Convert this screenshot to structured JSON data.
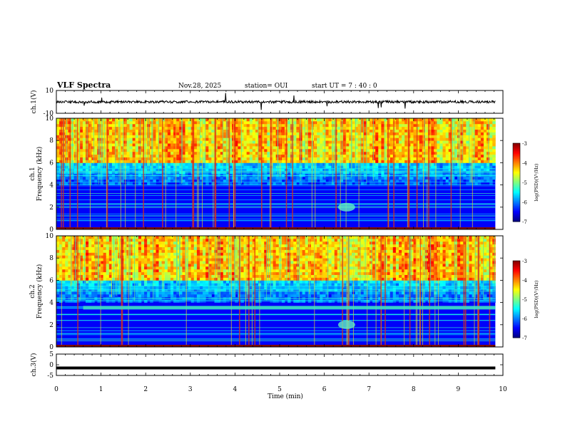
{
  "header": {
    "title": "VLF Spectra",
    "date": "Nov.28, 2025",
    "station": "station= OUI",
    "start": "start UT =   7 : 40 : 0"
  },
  "chart_data": [
    {
      "type": "line",
      "name": "ch1-waveform",
      "ylabel": "ch.1(V)",
      "ylim": [
        -10,
        10
      ],
      "yticks": [
        "10",
        "-10"
      ],
      "x_end_min": 9.83,
      "baseline": 0
    },
    {
      "type": "heatmap",
      "name": "ch1-spectrogram",
      "ylabel": "ch.1\nFrequency (kHz)",
      "ylim": [
        0,
        10
      ],
      "yticks": [
        "0",
        "2",
        "4",
        "6",
        "8",
        "10"
      ],
      "colorbar": {
        "label": "log(PSD)(V²/Hz)",
        "range": [
          -7,
          -3
        ],
        "ticks": [
          "-3",
          "-4",
          "-5",
          "-6",
          "-7"
        ]
      },
      "features": [
        {
          "label": "burst",
          "t_min": 6.5,
          "f_khz": 2.0
        }
      ]
    },
    {
      "type": "heatmap",
      "name": "ch2-spectrogram",
      "ylabel": "ch.2\nFrequency (kHz)",
      "ylim": [
        0,
        10
      ],
      "yticks": [
        "0",
        "2",
        "4",
        "6",
        "8",
        "10"
      ],
      "colorbar": {
        "label": "log(PSD)(V²/Hz)",
        "range": [
          -7,
          -3
        ],
        "ticks": [
          "-3",
          "-4",
          "-5",
          "-6",
          "-7"
        ]
      },
      "features": [
        {
          "label": "band",
          "t_min_from": 0.6,
          "f_khz": 3.5
        },
        {
          "label": "burst",
          "t_min": 6.5,
          "f_khz": 2.0
        }
      ]
    },
    {
      "type": "line",
      "name": "ch3-waveform",
      "ylabel": "ch.3(V)",
      "ylim": [
        -5,
        5
      ],
      "yticks": [
        "5",
        "0",
        "-5"
      ],
      "baseline": -1.5
    }
  ],
  "xaxis": {
    "label": "Time  (min)",
    "range": [
      0,
      10
    ],
    "ticks": [
      "0",
      "1",
      "2",
      "3",
      "4",
      "5",
      "6",
      "7",
      "8",
      "9",
      "10"
    ]
  }
}
